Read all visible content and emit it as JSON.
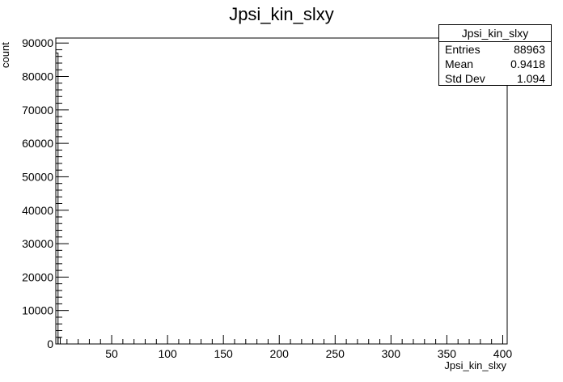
{
  "chart_data": {
    "type": "histogram",
    "title": "Jpsi_kin_slxy",
    "xlabel": "Jpsi_kin_slxy",
    "ylabel": "count",
    "xlim": [
      0,
      404
    ],
    "ylim": [
      0,
      91500
    ],
    "x_ticks": [
      50,
      100,
      150,
      200,
      250,
      300,
      350,
      400
    ],
    "y_ticks": [
      0,
      10000,
      20000,
      30000,
      40000,
      50000,
      60000,
      70000,
      80000,
      90000
    ],
    "bins": [
      {
        "x0": 0,
        "x1": 2,
        "count": 87000
      },
      {
        "x0": 2,
        "x1": 4,
        "count": 1900
      }
    ],
    "stats_box": {
      "title": "Jpsi_kin_slxy",
      "entries_label": "Entries",
      "entries": "88963",
      "mean_label": "Mean",
      "mean": "0.9418",
      "std_label": "Std Dev",
      "std": "1.094"
    }
  }
}
